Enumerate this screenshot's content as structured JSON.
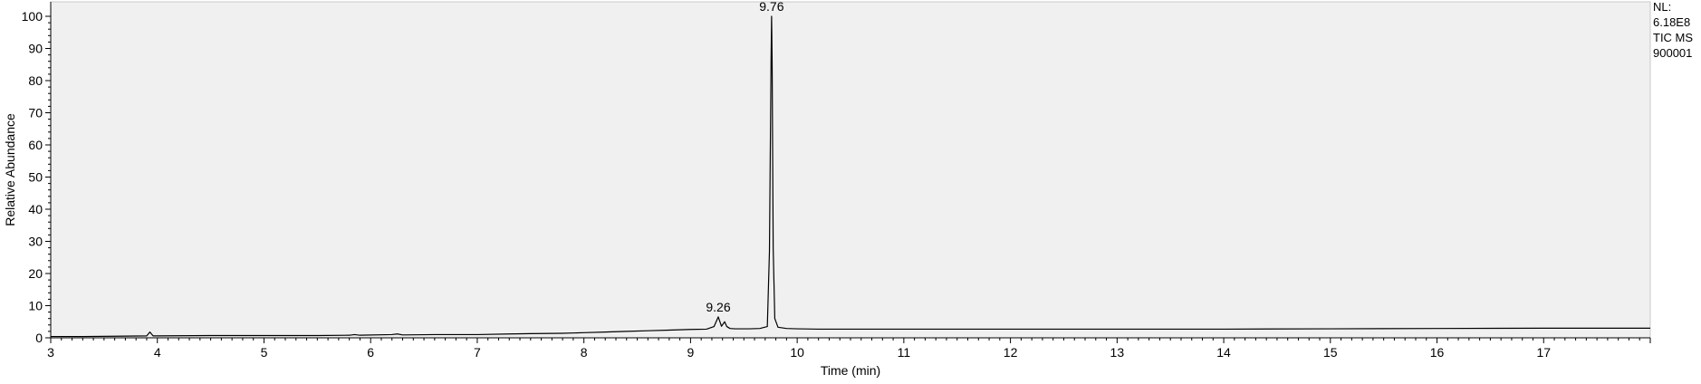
{
  "chart_data": {
    "type": "line",
    "title": "",
    "xlabel": "Time (min)",
    "ylabel": "Relative Abundance",
    "xlim": [
      3,
      18
    ],
    "ylim": [
      0,
      100
    ],
    "xticks": [
      3,
      4,
      5,
      6,
      7,
      8,
      9,
      10,
      11,
      12,
      13,
      14,
      15,
      16,
      17
    ],
    "yticks": [
      0,
      10,
      20,
      30,
      40,
      50,
      60,
      70,
      80,
      90,
      100
    ],
    "grid": false,
    "legend": "none",
    "series": [
      {
        "x": [
          3.0,
          3.3,
          3.6,
          3.9,
          3.93,
          3.96,
          4.0,
          4.5,
          5.0,
          5.5,
          5.8,
          5.85,
          5.9,
          6.2,
          6.25,
          6.3,
          6.6,
          7.0,
          7.3,
          7.5,
          7.8,
          8.0,
          8.2,
          8.4,
          8.6,
          8.8,
          9.0,
          9.15,
          9.22,
          9.26,
          9.29,
          9.32,
          9.34,
          9.37,
          9.42,
          9.55,
          9.65,
          9.72,
          9.74,
          9.755,
          9.76,
          9.765,
          9.775,
          9.79,
          9.82,
          9.9,
          10.0,
          10.2,
          10.5,
          11.0,
          12.0,
          13.0,
          14.0,
          15.0,
          16.0,
          17.0,
          18.0
        ],
        "y": [
          0.4,
          0.4,
          0.5,
          0.6,
          1.8,
          0.6,
          0.6,
          0.7,
          0.7,
          0.7,
          0.8,
          1.0,
          0.8,
          1.0,
          1.2,
          0.9,
          1.0,
          1.0,
          1.2,
          1.3,
          1.4,
          1.6,
          1.8,
          2.0,
          2.2,
          2.4,
          2.6,
          2.7,
          3.5,
          6.5,
          3.6,
          5.0,
          3.5,
          2.9,
          2.8,
          2.8,
          2.9,
          3.5,
          27,
          86,
          100,
          86,
          28,
          6,
          3.3,
          2.9,
          2.8,
          2.7,
          2.7,
          2.7,
          2.7,
          2.7,
          2.7,
          2.8,
          2.9,
          3.0,
          3.0
        ]
      }
    ],
    "annotations": [
      {
        "x": 9.26,
        "y": 6.5,
        "text": "9.26"
      },
      {
        "x": 9.76,
        "y": 100,
        "text": "9.76"
      }
    ],
    "info_lines": [
      "NL:",
      "6.18E8",
      "TIC  MS",
      "900001"
    ]
  },
  "colors": {
    "plot_background": "#f0f0f0",
    "trace": "#000000",
    "axis": "#000000",
    "plot_border": "#c8c8c8"
  }
}
